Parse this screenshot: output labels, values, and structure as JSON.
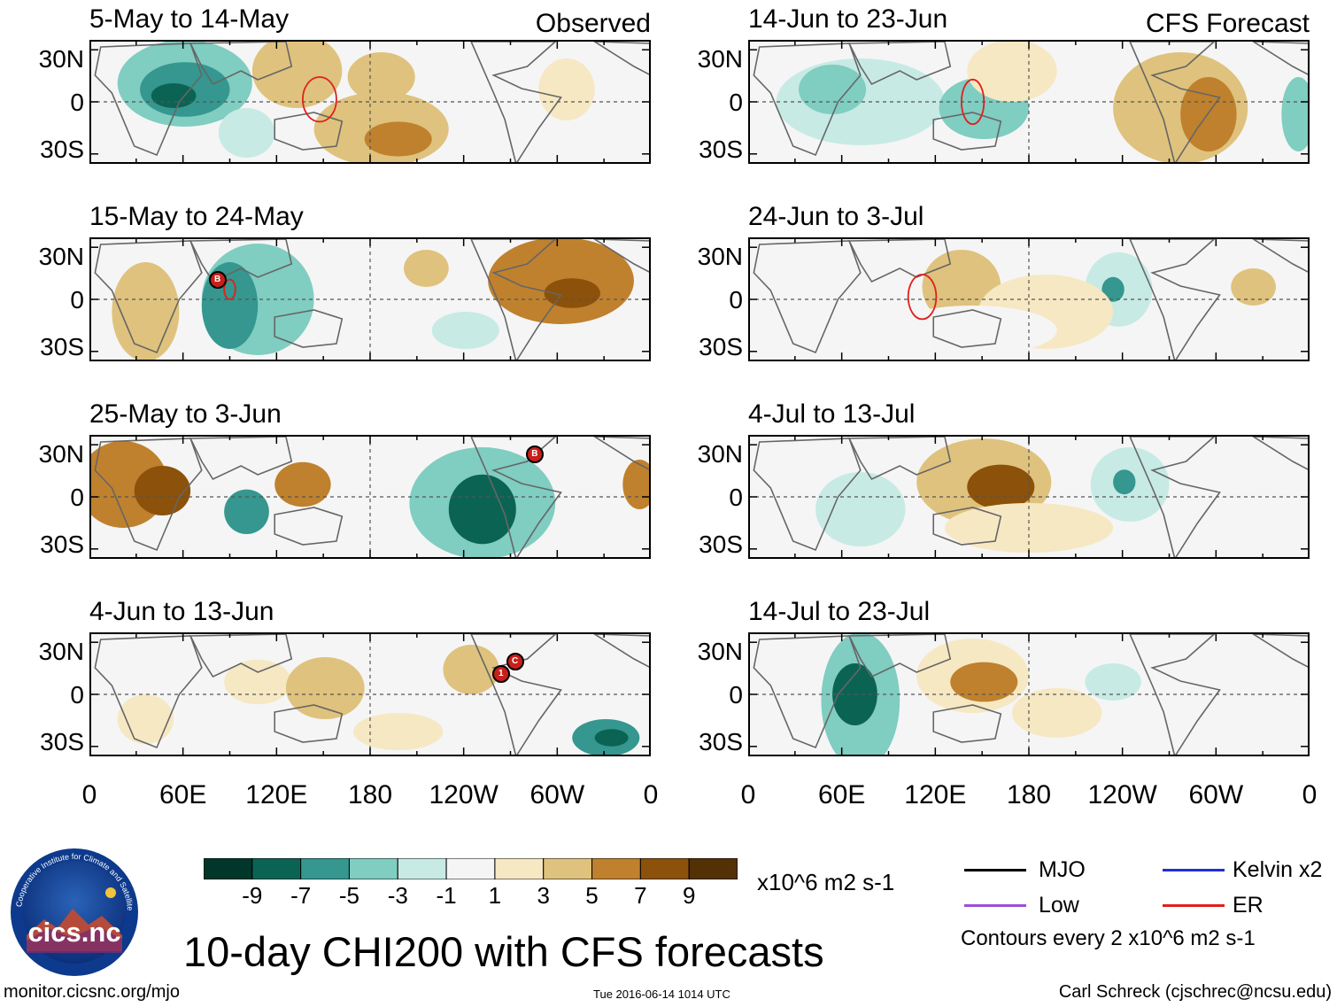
{
  "panels": [
    {
      "title": "5-May to 14-May",
      "tag": "Observed"
    },
    {
      "title": "14-Jun to 23-Jun",
      "tag": "CFS Forecast"
    },
    {
      "title": "15-May to 24-May",
      "tag": ""
    },
    {
      "title": "24-Jun to 3-Jul",
      "tag": ""
    },
    {
      "title": "25-May to 3-Jun",
      "tag": ""
    },
    {
      "title": "4-Jul to 13-Jul",
      "tag": ""
    },
    {
      "title": "4-Jun to 13-Jun",
      "tag": ""
    },
    {
      "title": "14-Jul to 23-Jul",
      "tag": ""
    }
  ],
  "lat_labels": [
    "30N",
    "0",
    "30S"
  ],
  "lon_labels": [
    "0",
    "60E",
    "120E",
    "180",
    "120W",
    "60W",
    "0"
  ],
  "storm_markers": [
    "B",
    "B",
    "1",
    "C"
  ],
  "colorbar": {
    "labels": [
      "-9",
      "-7",
      "-5",
      "-3",
      "-1",
      "1",
      "3",
      "5",
      "7",
      "9"
    ],
    "units": "x10^6 m2 s-1",
    "colors": [
      "#01362b",
      "#0b6453",
      "#35978f",
      "#80cdc1",
      "#c7eae5",
      "#f5f5f5",
      "#f6e8c3",
      "#dfc27d",
      "#bf812d",
      "#8c510a",
      "#543005"
    ]
  },
  "main_title": "10-day CHI200 with CFS forecasts",
  "legend": {
    "mjo": "MJO",
    "kelvin": "Kelvin x2",
    "low": "Low",
    "er": "ER",
    "contours": "Contours every 2 x10^6 m2 s-1",
    "colors": {
      "mjo": "#000000",
      "kelvin": "#1f2fd6",
      "low": "#9b4fd9",
      "er": "#e0201c"
    }
  },
  "logo": {
    "text": "cics.nc",
    "ring_text": "Cooperative Institute for Climate and Satellites"
  },
  "footer": {
    "left": "monitor.cicsnc.org/mjo",
    "center": "Tue 2016-06-14 1014 UTC",
    "right": "Carl Schreck (cjschrec@ncsu.edu)"
  }
}
